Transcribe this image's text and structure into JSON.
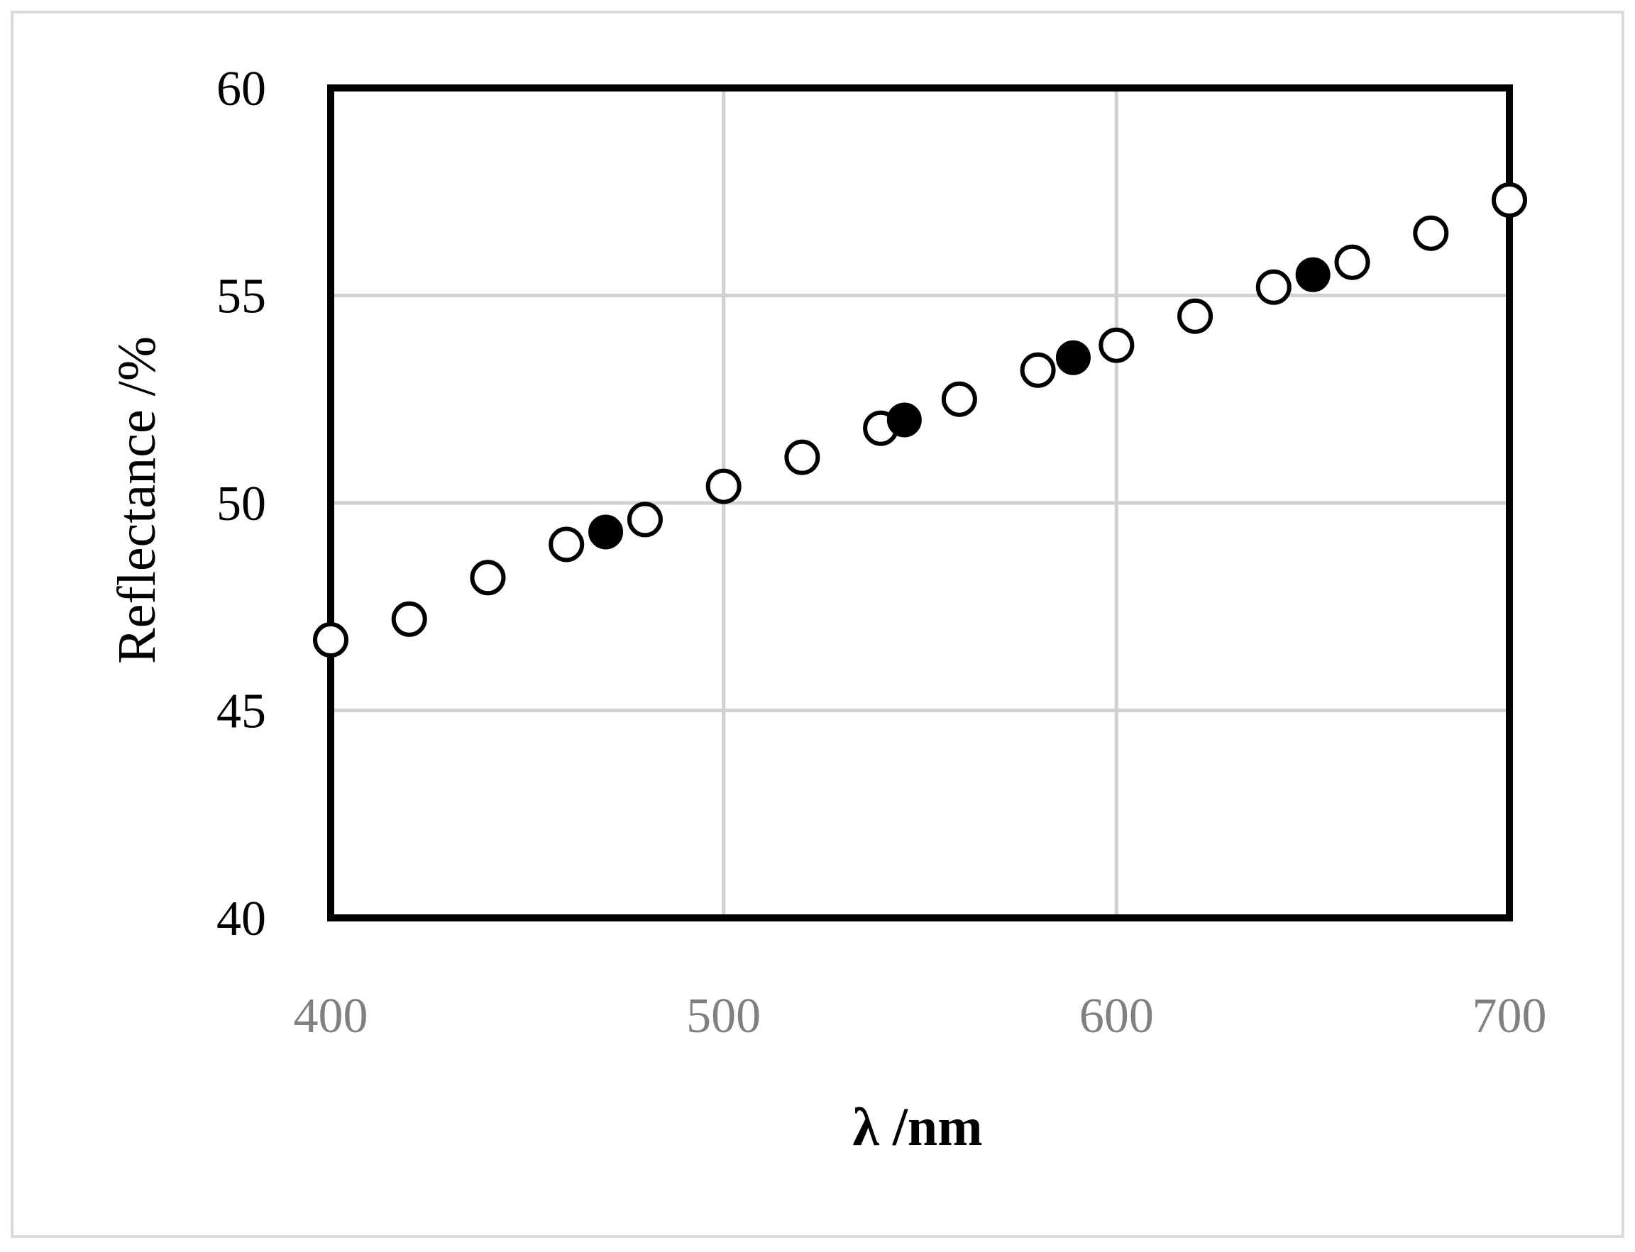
{
  "chart_data": {
    "type": "scatter",
    "title": "",
    "xlabel": "λ /nm",
    "ylabel": "Reflectance /%",
    "xlim": [
      400,
      700
    ],
    "ylim": [
      40,
      60
    ],
    "x_ticks": [
      400,
      500,
      600,
      700
    ],
    "y_ticks": [
      40,
      45,
      50,
      55,
      60
    ],
    "x_tick_labels": [
      "400",
      "500",
      "600",
      "700"
    ],
    "y_tick_labels": [
      "40",
      "45",
      "50",
      "55",
      "60"
    ],
    "grid": true,
    "legend": "none",
    "colors": {
      "grid": "#d0d0d0",
      "frame": "#000000",
      "marker": "#000000",
      "x_tick_text": "#808080"
    },
    "series": [
      {
        "marker": "open-circle",
        "x": [
          400,
          420,
          440,
          460,
          480,
          500,
          520,
          540,
          560,
          580,
          600,
          620,
          640,
          660,
          680,
          700
        ],
        "y": [
          46.7,
          47.2,
          48.2,
          49.0,
          49.6,
          50.4,
          51.1,
          51.8,
          52.5,
          53.2,
          53.8,
          54.5,
          55.2,
          55.8,
          56.5,
          57.3
        ]
      },
      {
        "marker": "filled-circle",
        "x": [
          470,
          546,
          589,
          650
        ],
        "y": [
          49.3,
          52.0,
          53.5,
          55.5
        ]
      }
    ]
  }
}
